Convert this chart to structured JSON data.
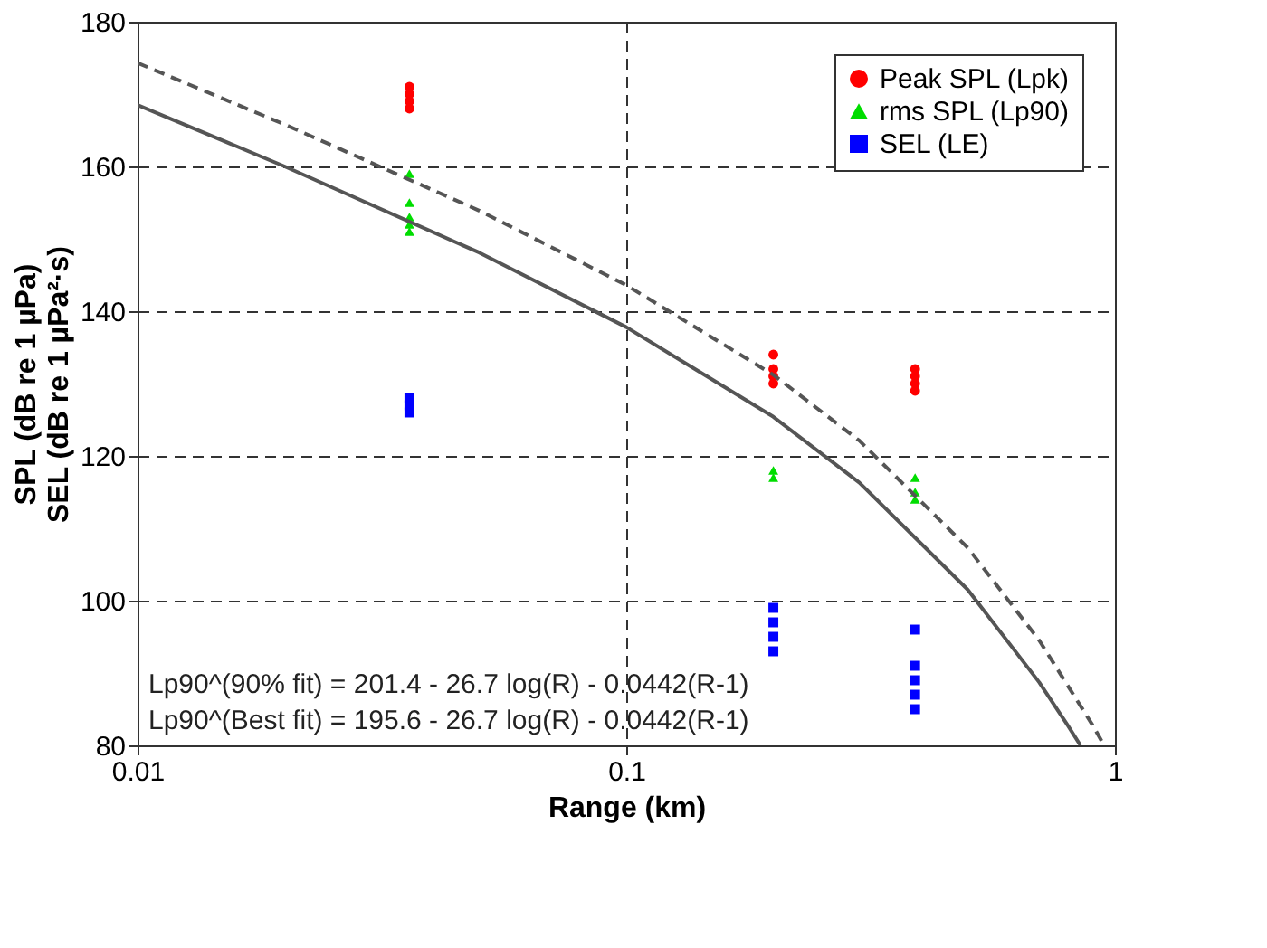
{
  "chart_data": {
    "type": "scatter",
    "xlabel": "Range (km)",
    "ylabel": "SPL (dB re 1 µPa)\nSEL (dB re 1 µPa²·s)",
    "log": "x",
    "xlim": [
      0.01,
      1
    ],
    "xticks": [
      0.01,
      0.1,
      1
    ],
    "ylim": [
      80,
      180
    ],
    "yticks": [
      80,
      100,
      120,
      140,
      160,
      180
    ],
    "grid": true,
    "legend": "top right",
    "series": [
      {
        "name": "Peak SPL (Lpk)",
        "color": "#ff0000",
        "marker": "circle",
        "x": [
          0.036,
          0.036,
          0.036,
          0.036,
          0.2,
          0.2,
          0.2,
          0.2,
          0.39,
          0.39,
          0.39,
          0.39
        ],
        "values": [
          171,
          170,
          169,
          168,
          134,
          132,
          131,
          130,
          132,
          131,
          130,
          129
        ]
      },
      {
        "name": "rms SPL (Lp90)",
        "color": "#00dd00",
        "marker": "triangle",
        "x": [
          0.036,
          0.036,
          0.036,
          0.036,
          0.036,
          0.2,
          0.2,
          0.39,
          0.39,
          0.39
        ],
        "values": [
          159,
          155,
          153,
          152,
          151,
          118,
          117,
          117,
          115,
          114
        ]
      },
      {
        "name": "SEL (LE)",
        "color": "#0000ff",
        "marker": "square",
        "x": [
          0.036,
          0.036,
          0.036,
          0.2,
          0.2,
          0.2,
          0.2,
          0.39,
          0.39,
          0.39,
          0.39,
          0.39
        ],
        "values": [
          128,
          127,
          126,
          99,
          97,
          95,
          93,
          96,
          91,
          89,
          87,
          85
        ]
      },
      {
        "type": "line",
        "color": "#555555",
        "line_style": "dashed",
        "x": [
          0.01,
          0.02,
          0.05,
          0.1,
          0.2,
          0.3,
          0.5,
          0.7,
          0.9,
          0.95
        ],
        "values": [
          174.3,
          165.8,
          153.9,
          143.6,
          131.2,
          122.1,
          107.3,
          94.5,
          82.8,
          80
        ]
      },
      {
        "type": "line",
        "color": "#555555",
        "line_style": "solid",
        "x": [
          0.01,
          0.02,
          0.05,
          0.1,
          0.2,
          0.3,
          0.5,
          0.7,
          0.8,
          0.85
        ],
        "values": [
          168.5,
          160.0,
          148.1,
          137.8,
          125.4,
          116.3,
          101.5,
          88.7,
          82.8,
          80
        ]
      }
    ],
    "annotations": [
      "Lp90^(90% fit) = 201.4  - 26.7 log(R) - 0.0442(R-1)",
      "Lp90^(Best fit) = 195.6  - 26.7 log(R) - 0.0442(R-1)"
    ]
  }
}
